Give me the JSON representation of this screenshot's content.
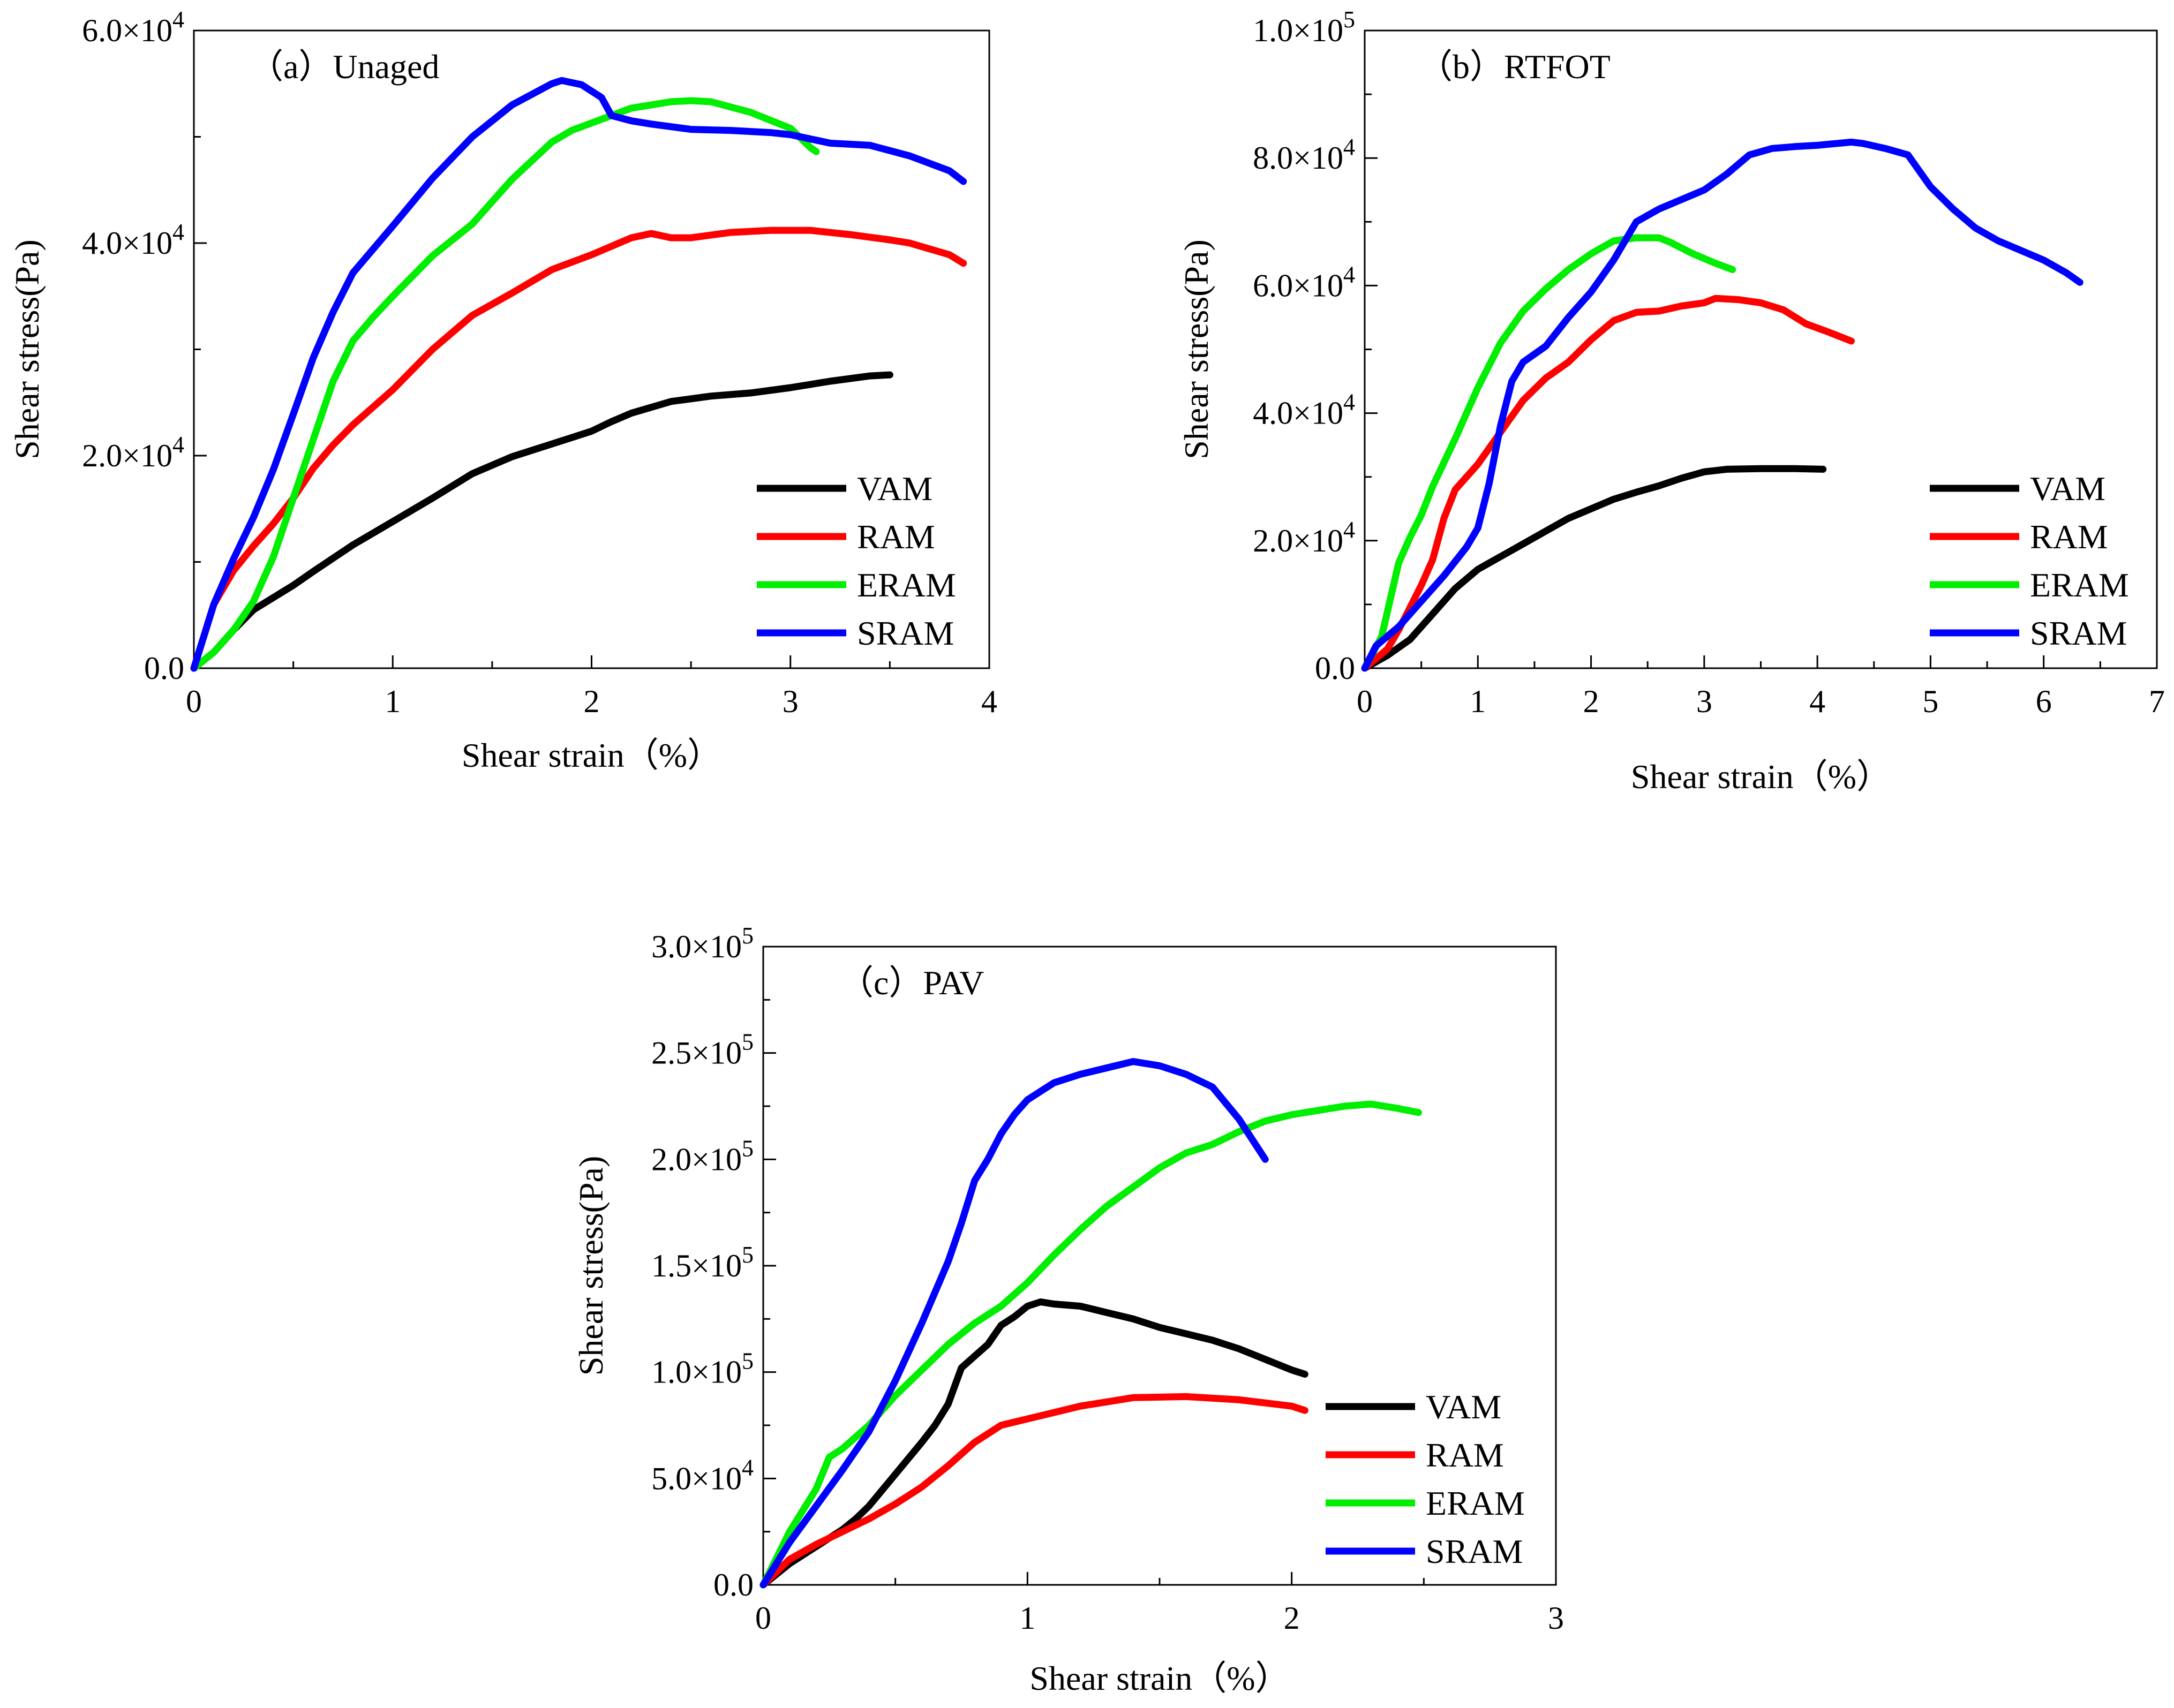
{
  "figure": {
    "series_colors": {
      "VAM": "#000000",
      "RAM": "#ff0000",
      "ERAM": "#00ee00",
      "SRAM": "#0000ff"
    },
    "legend_order": [
      "VAM",
      "RAM",
      "ERAM",
      "SRAM"
    ]
  },
  "chart_data": [
    {
      "type": "line",
      "title": "（a）Unaged",
      "xlabel": "Shear strain（%）",
      "ylabel": "Shear stress(Pa)",
      "xlim": [
        0,
        4
      ],
      "ylim": [
        0,
        60000
      ],
      "x_ticks": [
        0,
        1,
        2,
        3,
        4
      ],
      "x_tick_labels": [
        "0",
        "1",
        "2",
        "3",
        "4"
      ],
      "y_ticks": [
        0,
        20000,
        40000,
        60000
      ],
      "y_tick_labels": [
        {
          "mantissa": "0.0",
          "exp": ""
        },
        {
          "mantissa": "2.0×10",
          "exp": "4"
        },
        {
          "mantissa": "4.0×10",
          "exp": "4"
        },
        {
          "mantissa": "6.0×10",
          "exp": "4"
        }
      ],
      "legend_position": "bottom-right",
      "series": [
        {
          "name": "VAM",
          "x": [
            0,
            0.1,
            0.2,
            0.3,
            0.5,
            0.6,
            0.8,
            1.0,
            1.2,
            1.4,
            1.6,
            1.8,
            1.9,
            2.0,
            2.1,
            2.2,
            2.4,
            2.6,
            2.8,
            3.0,
            3.2,
            3.4,
            3.5
          ],
          "y": [
            0,
            1500,
            3600,
            5500,
            7800,
            9100,
            11600,
            13800,
            16000,
            18300,
            19900,
            21100,
            21700,
            22300,
            23200,
            24000,
            25100,
            25600,
            25900,
            26400,
            27000,
            27500,
            27600
          ]
        },
        {
          "name": "RAM",
          "x": [
            0,
            0.1,
            0.2,
            0.3,
            0.4,
            0.5,
            0.6,
            0.7,
            0.8,
            1.0,
            1.2,
            1.4,
            1.6,
            1.8,
            2.0,
            2.2,
            2.3,
            2.4,
            2.5,
            2.7,
            2.9,
            3.0,
            3.1,
            3.3,
            3.5,
            3.6,
            3.8,
            3.87
          ],
          "y": [
            0,
            6000,
            9200,
            11500,
            13600,
            16000,
            18800,
            21000,
            22900,
            26200,
            30000,
            33200,
            35300,
            37500,
            38900,
            40500,
            40900,
            40500,
            40500,
            41000,
            41200,
            41200,
            41200,
            40800,
            40300,
            40000,
            38900,
            38100
          ]
        },
        {
          "name": "ERAM",
          "x": [
            0,
            0.1,
            0.2,
            0.3,
            0.4,
            0.5,
            0.6,
            0.7,
            0.8,
            0.9,
            1.0,
            1.2,
            1.4,
            1.6,
            1.8,
            1.9,
            2.0,
            2.2,
            2.4,
            2.5,
            2.6,
            2.8,
            3.0,
            3.1,
            3.13
          ],
          "y": [
            0,
            1500,
            3600,
            6300,
            10500,
            16000,
            21500,
            27000,
            30800,
            33000,
            35000,
            38800,
            41800,
            46000,
            49500,
            50600,
            51300,
            52700,
            53300,
            53400,
            53300,
            52300,
            50800,
            49000,
            48600
          ]
        },
        {
          "name": "SRAM",
          "x": [
            0,
            0.1,
            0.2,
            0.3,
            0.4,
            0.5,
            0.6,
            0.7,
            0.8,
            1.0,
            1.2,
            1.4,
            1.6,
            1.8,
            1.85,
            1.95,
            2.05,
            2.1,
            2.2,
            2.3,
            2.5,
            2.7,
            2.9,
            3.0,
            3.2,
            3.4,
            3.6,
            3.8,
            3.87
          ],
          "y": [
            0,
            6000,
            10300,
            14200,
            18700,
            23900,
            29200,
            33500,
            37200,
            41600,
            46100,
            50000,
            53000,
            55000,
            55300,
            54900,
            53700,
            52000,
            51500,
            51200,
            50700,
            50600,
            50400,
            50200,
            49400,
            49200,
            48200,
            46800,
            45800
          ]
        }
      ]
    },
    {
      "type": "line",
      "title": "（b）RTFOT",
      "xlabel": "Shear strain（%）",
      "ylabel": "Shear stress(Pa)",
      "xlim": [
        0,
        7
      ],
      "ylim": [
        0,
        100000
      ],
      "x_ticks": [
        0,
        1,
        2,
        3,
        4,
        5,
        6,
        7
      ],
      "x_tick_labels": [
        "0",
        "1",
        "2",
        "3",
        "4",
        "5",
        "6",
        "7"
      ],
      "y_ticks": [
        0,
        20000,
        40000,
        60000,
        80000,
        100000
      ],
      "y_tick_labels": [
        {
          "mantissa": "0.0",
          "exp": ""
        },
        {
          "mantissa": "2.0×10",
          "exp": "4"
        },
        {
          "mantissa": "4.0×10",
          "exp": "4"
        },
        {
          "mantissa": "6.0×10",
          "exp": "4"
        },
        {
          "mantissa": "8.0×10",
          "exp": "4"
        },
        {
          "mantissa": "1.0×10",
          "exp": "5"
        }
      ],
      "legend_position": "bottom-right",
      "series": [
        {
          "name": "VAM",
          "x": [
            0,
            0.2,
            0.4,
            0.6,
            0.8,
            1.0,
            1.2,
            1.4,
            1.6,
            1.8,
            2.0,
            2.2,
            2.4,
            2.6,
            2.8,
            3.0,
            3.2,
            3.5,
            3.8,
            4.05
          ],
          "y": [
            0,
            2000,
            4500,
            8500,
            12500,
            15500,
            17500,
            19500,
            21500,
            23500,
            25000,
            26500,
            27600,
            28600,
            29800,
            30800,
            31200,
            31300,
            31300,
            31200
          ]
        },
        {
          "name": "RAM",
          "x": [
            0,
            0.2,
            0.3,
            0.4,
            0.5,
            0.6,
            0.7,
            0.8,
            1.0,
            1.2,
            1.4,
            1.6,
            1.8,
            2.0,
            2.2,
            2.4,
            2.6,
            2.8,
            3.0,
            3.1,
            3.3,
            3.5,
            3.7,
            3.9,
            4.1,
            4.3
          ],
          "y": [
            0,
            3000,
            6000,
            9500,
            13000,
            17000,
            23500,
            28000,
            32000,
            37000,
            42000,
            45500,
            48000,
            51500,
            54500,
            55800,
            56000,
            56800,
            57300,
            58000,
            57800,
            57300,
            56200,
            54000,
            52700,
            51300
          ]
        },
        {
          "name": "ERAM",
          "x": [
            0,
            0.15,
            0.3,
            0.4,
            0.5,
            0.6,
            0.8,
            1.0,
            1.2,
            1.4,
            1.6,
            1.8,
            2.0,
            2.2,
            2.4,
            2.6,
            2.7,
            2.9,
            3.1,
            3.25
          ],
          "y": [
            0,
            5000,
            16500,
            20500,
            24000,
            28500,
            36000,
            44000,
            51000,
            56000,
            59500,
            62500,
            65000,
            67000,
            67500,
            67500,
            66800,
            65000,
            63500,
            62500
          ]
        },
        {
          "name": "SRAM",
          "x": [
            0,
            0.1,
            0.3,
            0.5,
            0.7,
            0.9,
            1.0,
            1.1,
            1.2,
            1.3,
            1.4,
            1.6,
            1.8,
            2.0,
            2.2,
            2.4,
            2.6,
            2.8,
            3.0,
            3.2,
            3.4,
            3.6,
            3.8,
            4.0,
            4.3,
            4.4,
            4.6,
            4.8,
            5.0,
            5.2,
            5.4,
            5.6,
            5.8,
            6.0,
            6.2,
            6.32
          ],
          "y": [
            0,
            3500,
            6500,
            10500,
            14500,
            19000,
            22000,
            29000,
            38000,
            45000,
            48000,
            50500,
            55000,
            59000,
            64000,
            70000,
            72000,
            73500,
            75000,
            77500,
            80500,
            81500,
            81800,
            82000,
            82500,
            82300,
            81500,
            80500,
            75500,
            72000,
            69000,
            67000,
            65500,
            64000,
            62000,
            60500
          ]
        }
      ]
    },
    {
      "type": "line",
      "title": "（c）PAV",
      "xlabel": "Shear strain（%）",
      "ylabel": "Shear stress(Pa)",
      "xlim": [
        0,
        3
      ],
      "ylim": [
        0,
        300000
      ],
      "x_ticks": [
        0,
        1,
        2,
        3
      ],
      "x_tick_labels": [
        "0",
        "1",
        "2",
        "3"
      ],
      "y_ticks": [
        0,
        50000,
        100000,
        150000,
        200000,
        250000,
        300000
      ],
      "y_tick_labels": [
        {
          "mantissa": "0.0",
          "exp": ""
        },
        {
          "mantissa": "5.0×10",
          "exp": "4"
        },
        {
          "mantissa": "1.0×10",
          "exp": "5"
        },
        {
          "mantissa": "1.5×10",
          "exp": "5"
        },
        {
          "mantissa": "2.0×10",
          "exp": "5"
        },
        {
          "mantissa": "2.5×10",
          "exp": "5"
        },
        {
          "mantissa": "3.0×10",
          "exp": "5"
        }
      ],
      "legend_position": "bottom-right",
      "series": [
        {
          "name": "VAM",
          "x": [
            0,
            0.1,
            0.2,
            0.3,
            0.35,
            0.4,
            0.5,
            0.6,
            0.65,
            0.7,
            0.75,
            0.85,
            0.9,
            0.95,
            1.0,
            1.05,
            1.1,
            1.2,
            1.3,
            1.4,
            1.5,
            1.6,
            1.7,
            1.8,
            1.9,
            2.0,
            2.05
          ],
          "y": [
            0,
            10000,
            18000,
            26000,
            31000,
            37000,
            52000,
            67000,
            75000,
            85000,
            102000,
            113000,
            122000,
            126000,
            131000,
            133000,
            132000,
            131000,
            128000,
            125000,
            121000,
            118000,
            115000,
            111000,
            106000,
            101000,
            99000
          ]
        },
        {
          "name": "RAM",
          "x": [
            0,
            0.1,
            0.2,
            0.3,
            0.4,
            0.5,
            0.6,
            0.7,
            0.8,
            0.9,
            1.0,
            1.1,
            1.2,
            1.3,
            1.4,
            1.6,
            1.8,
            2.0,
            2.05
          ],
          "y": [
            0,
            12000,
            19000,
            25000,
            31000,
            38000,
            46000,
            56000,
            67000,
            75000,
            78000,
            81000,
            84000,
            86000,
            88000,
            88500,
            87000,
            84000,
            82000
          ]
        },
        {
          "name": "ERAM",
          "x": [
            0,
            0.1,
            0.2,
            0.25,
            0.3,
            0.4,
            0.5,
            0.6,
            0.7,
            0.8,
            0.9,
            1.0,
            1.1,
            1.2,
            1.3,
            1.4,
            1.5,
            1.6,
            1.7,
            1.8,
            1.9,
            2.0,
            2.1,
            2.2,
            2.3,
            2.4,
            2.48
          ],
          "y": [
            0,
            25000,
            45000,
            60000,
            64000,
            75000,
            89000,
            101000,
            113000,
            123000,
            131000,
            142000,
            155000,
            167000,
            178000,
            187000,
            196000,
            203000,
            207000,
            213000,
            218000,
            221000,
            223000,
            225000,
            226000,
            224000,
            222000
          ]
        },
        {
          "name": "SRAM",
          "x": [
            0,
            0.1,
            0.2,
            0.3,
            0.4,
            0.5,
            0.6,
            0.7,
            0.75,
            0.8,
            0.85,
            0.9,
            0.95,
            1.0,
            1.1,
            1.2,
            1.3,
            1.4,
            1.5,
            1.6,
            1.7,
            1.8,
            1.9
          ],
          "y": [
            0,
            20000,
            37000,
            54000,
            72000,
            96000,
            123000,
            152000,
            170000,
            190000,
            200000,
            212000,
            221000,
            228000,
            236000,
            240000,
            243000,
            246000,
            244000,
            240000,
            234000,
            219000,
            200000
          ]
        }
      ]
    }
  ]
}
